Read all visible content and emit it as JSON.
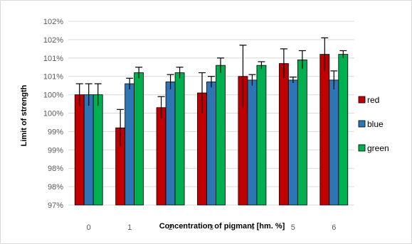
{
  "chart_data": {
    "type": "bar",
    "xlabel": "Concentration of pigmant [hm. %]",
    "ylabel": "Limit of strength",
    "categories": [
      "0",
      "1",
      "2",
      "3",
      "4",
      "5",
      "6"
    ],
    "y_tick_labels": [
      "97%",
      "98%",
      "98%",
      "99%",
      "99%",
      "100%",
      "100%",
      "101%",
      "101%",
      "102%",
      "102%"
    ],
    "ylim": [
      97,
      102
    ],
    "grid": true,
    "legend_position": "right",
    "series": [
      {
        "name": "red",
        "color": "#c00000",
        "values": [
          100.0,
          99.1,
          99.65,
          100.05,
          100.5,
          100.85,
          101.1
        ],
        "errors": [
          0.3,
          0.5,
          0.3,
          0.55,
          0.85,
          0.4,
          0.45
        ]
      },
      {
        "name": "blue",
        "color": "#2e75b6",
        "values": [
          100.0,
          100.3,
          100.35,
          100.35,
          100.4,
          100.4,
          100.4
        ],
        "errors": [
          0.3,
          0.15,
          0.2,
          0.15,
          0.15,
          0.08,
          0.25
        ]
      },
      {
        "name": "green",
        "color": "#00b050",
        "values": [
          100.0,
          100.6,
          100.6,
          100.8,
          100.8,
          100.95,
          101.1
        ],
        "errors": [
          0.3,
          0.15,
          0.15,
          0.2,
          0.1,
          0.25,
          0.1
        ]
      }
    ]
  }
}
